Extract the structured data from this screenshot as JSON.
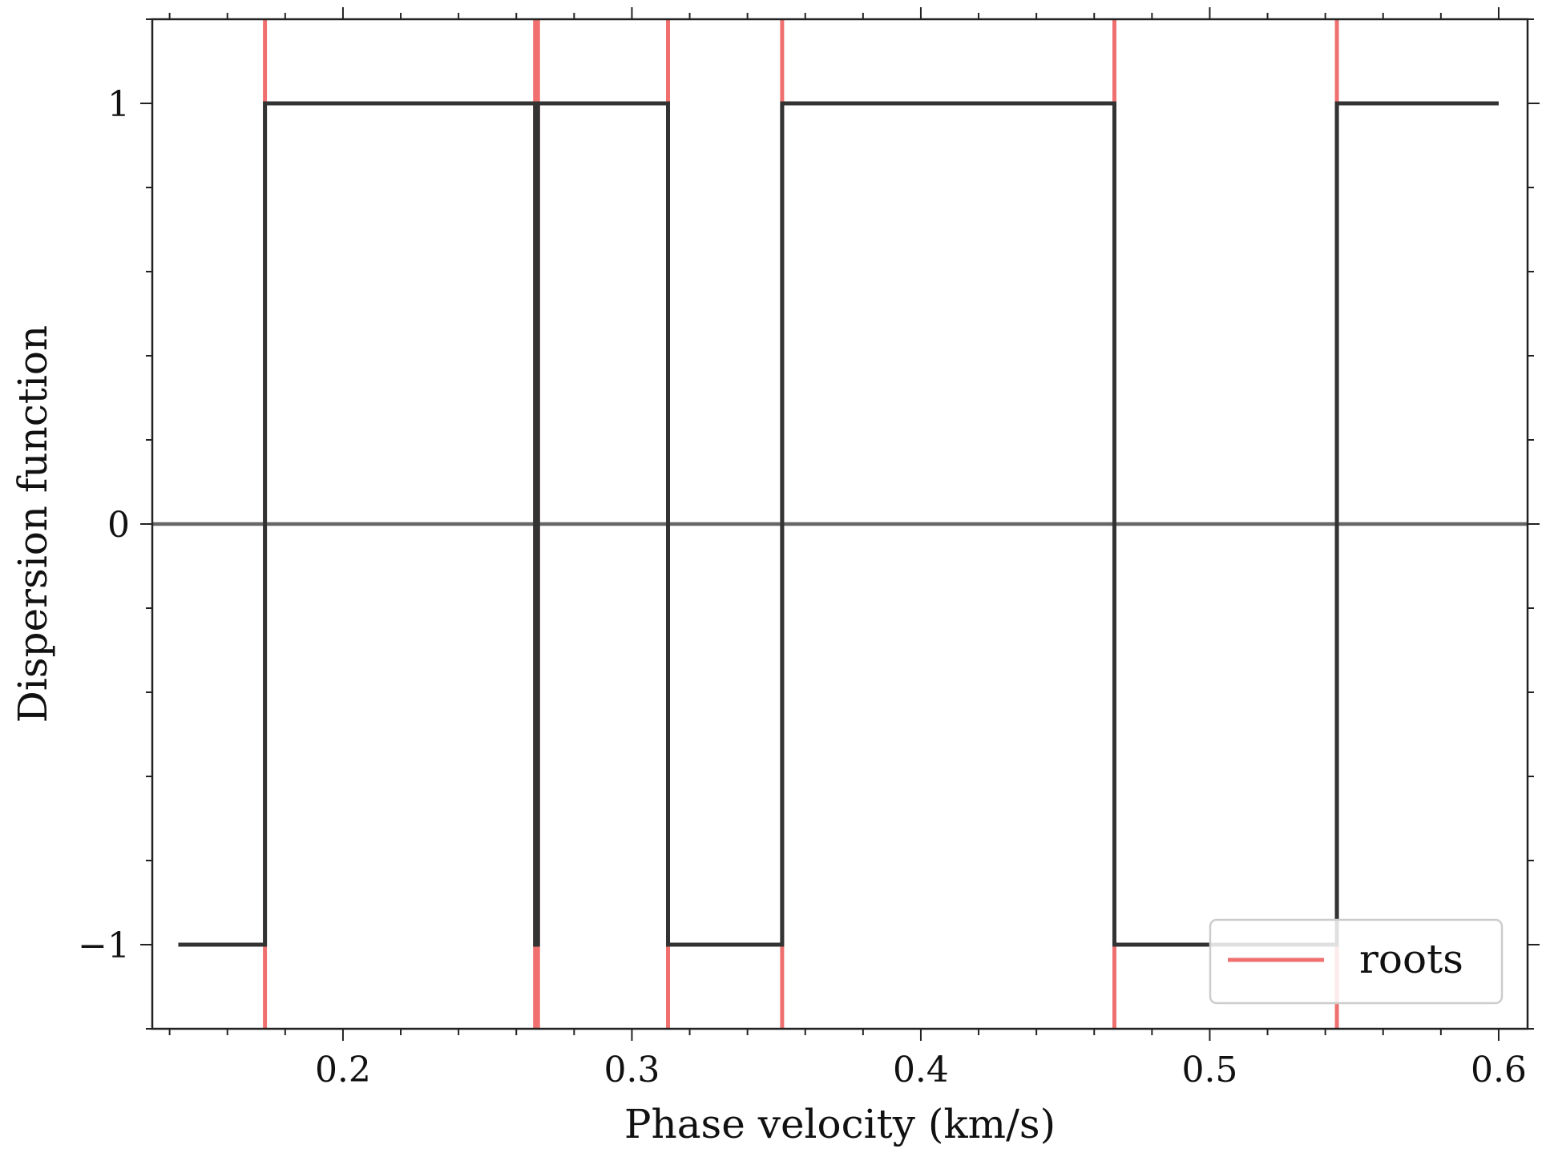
{
  "chart_data": {
    "type": "line",
    "title": "",
    "xlabel": "Phase velocity (km/s)",
    "ylabel": "Dispersion function",
    "xlim": [
      0.134,
      0.61
    ],
    "ylim": [
      -1.2,
      1.2
    ],
    "xticks": [
      0.2,
      0.3,
      0.4,
      0.5,
      0.6
    ],
    "xtick_labels": [
      "0.2",
      "0.3",
      "0.4",
      "0.5",
      "0.6"
    ],
    "x_minor_step": 0.02,
    "yticks": [
      -1,
      0,
      1
    ],
    "ytick_labels": [
      "−1",
      "0",
      "1"
    ],
    "y_minor_step": 0.2,
    "grid": false,
    "zero_line": {
      "y": 0,
      "color": "#666666"
    },
    "series": [
      {
        "style": "step",
        "color": "#333333",
        "x": [
          0.143,
          0.173,
          0.173,
          0.2665,
          0.2665,
          0.2675,
          0.2675,
          0.3125,
          0.3125,
          0.352,
          0.352,
          0.467,
          0.467,
          0.544,
          0.544,
          0.6
        ],
        "y": [
          -1,
          -1,
          1,
          1,
          -1,
          -1,
          1,
          1,
          -1,
          -1,
          1,
          1,
          -1,
          -1,
          1,
          1
        ]
      },
      {
        "name": "roots",
        "style": "vlines",
        "color": "#f07070",
        "x": [
          0.173,
          0.2665,
          0.2675,
          0.3125,
          0.352,
          0.467,
          0.544
        ]
      }
    ],
    "legend": {
      "entries": [
        "roots"
      ],
      "placement": "lower right"
    }
  }
}
